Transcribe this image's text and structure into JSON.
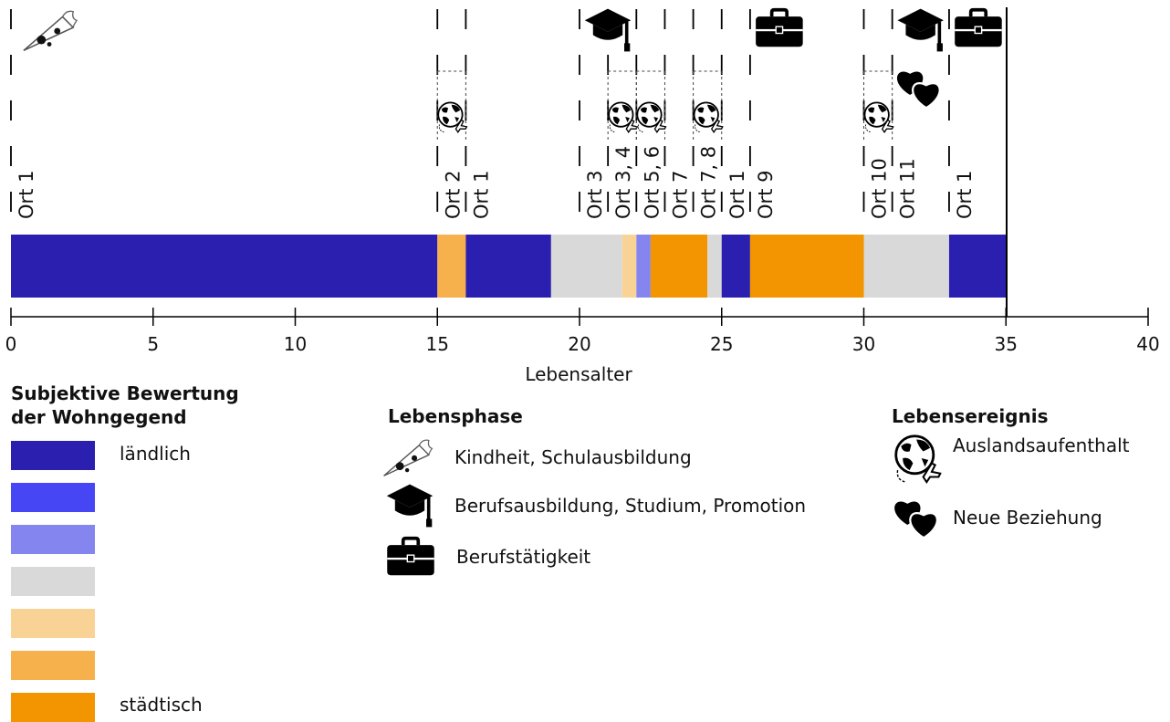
{
  "chart_data": {
    "type": "timeline",
    "xlabel": "Lebensalter",
    "xlim": [
      0,
      40
    ],
    "xticks": [
      0,
      5,
      10,
      15,
      20,
      25,
      30,
      35,
      40
    ],
    "current_age": 35,
    "residence_segments": [
      {
        "start": 0,
        "end": 15,
        "level": 1
      },
      {
        "start": 15,
        "end": 16,
        "level": 6
      },
      {
        "start": 16,
        "end": 19,
        "level": 1
      },
      {
        "start": 19,
        "end": 21.5,
        "level": 4
      },
      {
        "start": 21.5,
        "end": 22,
        "level": 5
      },
      {
        "start": 22,
        "end": 22.5,
        "level": 3
      },
      {
        "start": 22.5,
        "end": 24.5,
        "level": 7
      },
      {
        "start": 24.5,
        "end": 25,
        "level": 4
      },
      {
        "start": 25,
        "end": 26,
        "level": 1
      },
      {
        "start": 26,
        "end": 30,
        "level": 7
      },
      {
        "start": 30,
        "end": 33,
        "level": 4
      },
      {
        "start": 33,
        "end": 35,
        "level": 1
      }
    ],
    "place_labels": [
      {
        "x": 0,
        "label": "Ort 1"
      },
      {
        "x": 15,
        "label": "Ort 2"
      },
      {
        "x": 16,
        "label": "Ort 1"
      },
      {
        "x": 20,
        "label": "Ort 3"
      },
      {
        "x": 21,
        "label": "Ort 3, 4"
      },
      {
        "x": 22,
        "label": "Ort 5, 6"
      },
      {
        "x": 23,
        "label": "Ort 7"
      },
      {
        "x": 24,
        "label": "Ort 7, 8"
      },
      {
        "x": 25,
        "label": "Ort 1"
      },
      {
        "x": 26,
        "label": "Ort 9"
      },
      {
        "x": 30,
        "label": "Ort 10"
      },
      {
        "x": 31,
        "label": "Ort 11"
      },
      {
        "x": 33,
        "label": "Ort 1"
      }
    ],
    "life_phases": [
      {
        "x": 0,
        "icon": "schultuete-icon"
      },
      {
        "x": 20,
        "icon": "graduation-cap-icon"
      },
      {
        "x": 26,
        "icon": "briefcase-icon"
      },
      {
        "x": 31,
        "icon": "graduation-cap-icon"
      },
      {
        "x": 33,
        "icon": "briefcase-icon"
      }
    ],
    "events_abroad": [
      {
        "start": 15,
        "end": 16
      },
      {
        "start": 21,
        "end": 22
      },
      {
        "start": 22,
        "end": 23
      },
      {
        "start": 24,
        "end": 25
      },
      {
        "start": 30,
        "end": 31
      }
    ],
    "events_relationship": [
      {
        "start": 31,
        "end": 33
      }
    ]
  },
  "colors": {
    "level1": "#2a1fae",
    "level2": "#4646f5",
    "level3": "#8585ef",
    "level4": "#d9d9d9",
    "level5": "#f9d296",
    "level6": "#f6b04c",
    "level7": "#f39500"
  },
  "legend": {
    "rating_title_line1": "Subjektive Bewertung",
    "rating_title_line2": "der Wohngegend",
    "rating_low_label": "ländlich",
    "rating_high_label": "städtisch",
    "phase_title": "Lebensphase",
    "phases": [
      {
        "icon": "schultuete-icon",
        "label": "Kindheit, Schulausbildung"
      },
      {
        "icon": "graduation-cap-icon",
        "label": "Berufsausbildung, Studium, Promotion"
      },
      {
        "icon": "briefcase-icon",
        "label": "Berufstätigkeit"
      }
    ],
    "event_title": "Lebensereignis",
    "events": [
      {
        "icon": "globe-plane-icon",
        "label": "Auslandsaufenthalt"
      },
      {
        "icon": "hearts-icon",
        "label": "Neue Beziehung"
      }
    ]
  }
}
